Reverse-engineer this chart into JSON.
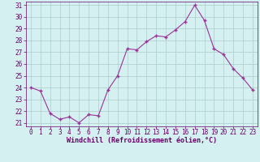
{
  "hours": [
    0,
    1,
    2,
    3,
    4,
    5,
    6,
    7,
    8,
    9,
    10,
    11,
    12,
    13,
    14,
    15,
    16,
    17,
    18,
    19,
    20,
    21,
    22,
    23
  ],
  "values": [
    24.0,
    23.7,
    21.8,
    21.3,
    21.5,
    21.0,
    21.7,
    21.6,
    23.8,
    25.0,
    27.3,
    27.2,
    27.9,
    28.4,
    28.3,
    28.9,
    29.6,
    31.0,
    29.7,
    27.3,
    26.8,
    25.6,
    24.8,
    23.8
  ],
  "xlim": [
    -0.5,
    23.5
  ],
  "ylim": [
    20.7,
    31.3
  ],
  "yticks": [
    21,
    22,
    23,
    24,
    25,
    26,
    27,
    28,
    29,
    30,
    31
  ],
  "xticks": [
    0,
    1,
    2,
    3,
    4,
    5,
    6,
    7,
    8,
    9,
    10,
    11,
    12,
    13,
    14,
    15,
    16,
    17,
    18,
    19,
    20,
    21,
    22,
    23
  ],
  "line_color": "#993399",
  "marker": "+",
  "marker_size": 3.5,
  "marker_lw": 1.0,
  "line_width": 0.8,
  "xlabel": "Windchill (Refroidissement éolien,°C)",
  "bg_color": "#d5f0f0",
  "grid_color": "#aacccc",
  "tick_label_color": "#660066",
  "xlabel_color": "#660066",
  "tick_fontsize": 5.5,
  "xlabel_fontsize": 6.0
}
